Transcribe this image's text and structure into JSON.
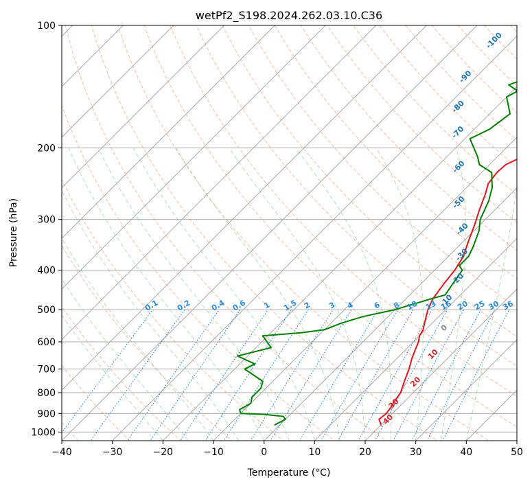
{
  "chart_data": {
    "type": "line",
    "title": "wetPf2_S198.2024.262.03.10.C36",
    "xlabel": "Temperature (°C)",
    "ylabel": "Pressure (hPa)",
    "xlim": [
      -40,
      50
    ],
    "ylim": [
      1050,
      100
    ],
    "y_scale": "log",
    "grid": true,
    "x_ticks": [
      -40,
      -30,
      -20,
      -10,
      0,
      10,
      20,
      30,
      40,
      50
    ],
    "y_ticks": [
      100,
      200,
      300,
      400,
      500,
      600,
      700,
      800,
      900,
      1000
    ],
    "colors": {
      "temperature": "#e8141a",
      "dewpoint": "#008000",
      "dry_adiabat": "#f4a582",
      "moist_adiabat": "#74c476",
      "mixing_ratio": "#2b8cde",
      "isotherm": "#a0a0a0",
      "label_neg": "#1f77b4",
      "label_pos": "#d62728"
    },
    "series": [
      {
        "key": "temperature",
        "x": [
          20,
          18.5,
          18.8,
          18.5,
          18,
          17.5,
          16,
          14.5,
          13,
          12,
          11,
          10,
          9.5,
          8,
          6.5,
          5.3,
          4.5,
          4,
          3,
          1,
          -1,
          -3,
          -5,
          -6.5,
          -7,
          -6.8,
          -5,
          -2,
          0,
          1.5,
          4,
          6,
          7,
          8,
          8.3,
          8.5,
          9,
          10,
          12,
          14
        ],
        "y": [
          960,
          930,
          900,
          870,
          840,
          800,
          750,
          700,
          660,
          630,
          600,
          580,
          560,
          530,
          500,
          470,
          430,
          400,
          370,
          340,
          310,
          285,
          260,
          245,
          230,
          220,
          210,
          200,
          190,
          180,
          165,
          150,
          140,
          130,
          120,
          115,
          110,
          106,
          103,
          100
        ]
      },
      {
        "key": "dewpoint",
        "x": [
          -1,
          0,
          -1,
          -5,
          -10,
          -11,
          -10,
          -11,
          -11,
          -12,
          -18,
          -17,
          -22,
          -17,
          -21,
          -14,
          -10,
          -8,
          -5,
          0,
          5,
          7,
          6.5,
          6,
          5.5,
          4,
          4,
          3,
          1,
          -1,
          -3,
          -5,
          -6.5,
          -8,
          -12,
          -14,
          -19,
          -17,
          -16,
          -20,
          -19,
          -22,
          -16,
          -14,
          -14,
          -15.5
        ],
        "y": [
          960,
          930,
          915,
          905,
          900,
          880,
          850,
          820,
          780,
          750,
          700,
          680,
          650,
          620,
          580,
          570,
          560,
          540,
          520,
          500,
          470,
          460,
          440,
          420,
          400,
          390,
          370,
          350,
          320,
          300,
          270,
          250,
          240,
          230,
          220,
          210,
          190,
          180,
          165,
          150,
          145,
          140,
          128,
          120,
          110,
          100
        ]
      }
    ],
    "dry_adiabat_labels": [
      {
        "value": -100,
        "x": -33,
        "y": 110
      },
      {
        "value": -90,
        "x": -31.5,
        "y": 135
      },
      {
        "value": -80,
        "x": -27,
        "y": 160
      },
      {
        "value": -70,
        "x": -22,
        "y": 185
      },
      {
        "value": -60,
        "x": -15,
        "y": 225
      },
      {
        "value": -50,
        "x": -8,
        "y": 275
      },
      {
        "value": -40,
        "x": -2,
        "y": 320
      },
      {
        "value": -30,
        "x": 3,
        "y": 370
      },
      {
        "value": -20,
        "x": 7,
        "y": 425
      },
      {
        "value": -10,
        "x": 9,
        "y": 480
      },
      {
        "value": 0,
        "x": 14,
        "y": 560
      },
      {
        "value": 10,
        "x": 17,
        "y": 650
      },
      {
        "value": 20,
        "x": 19,
        "y": 760
      },
      {
        "value": 30,
        "x": 19,
        "y": 860
      },
      {
        "value": 40,
        "x": 21,
        "y": 940
      }
    ],
    "mixing_ratio_labels": [
      "0.1",
      "0.2",
      "0.4",
      "0.6",
      "1",
      "1.5",
      "2",
      "3",
      "4",
      "6",
      "8",
      "10",
      "13",
      "16",
      "20",
      "25",
      "30",
      "36"
    ]
  }
}
